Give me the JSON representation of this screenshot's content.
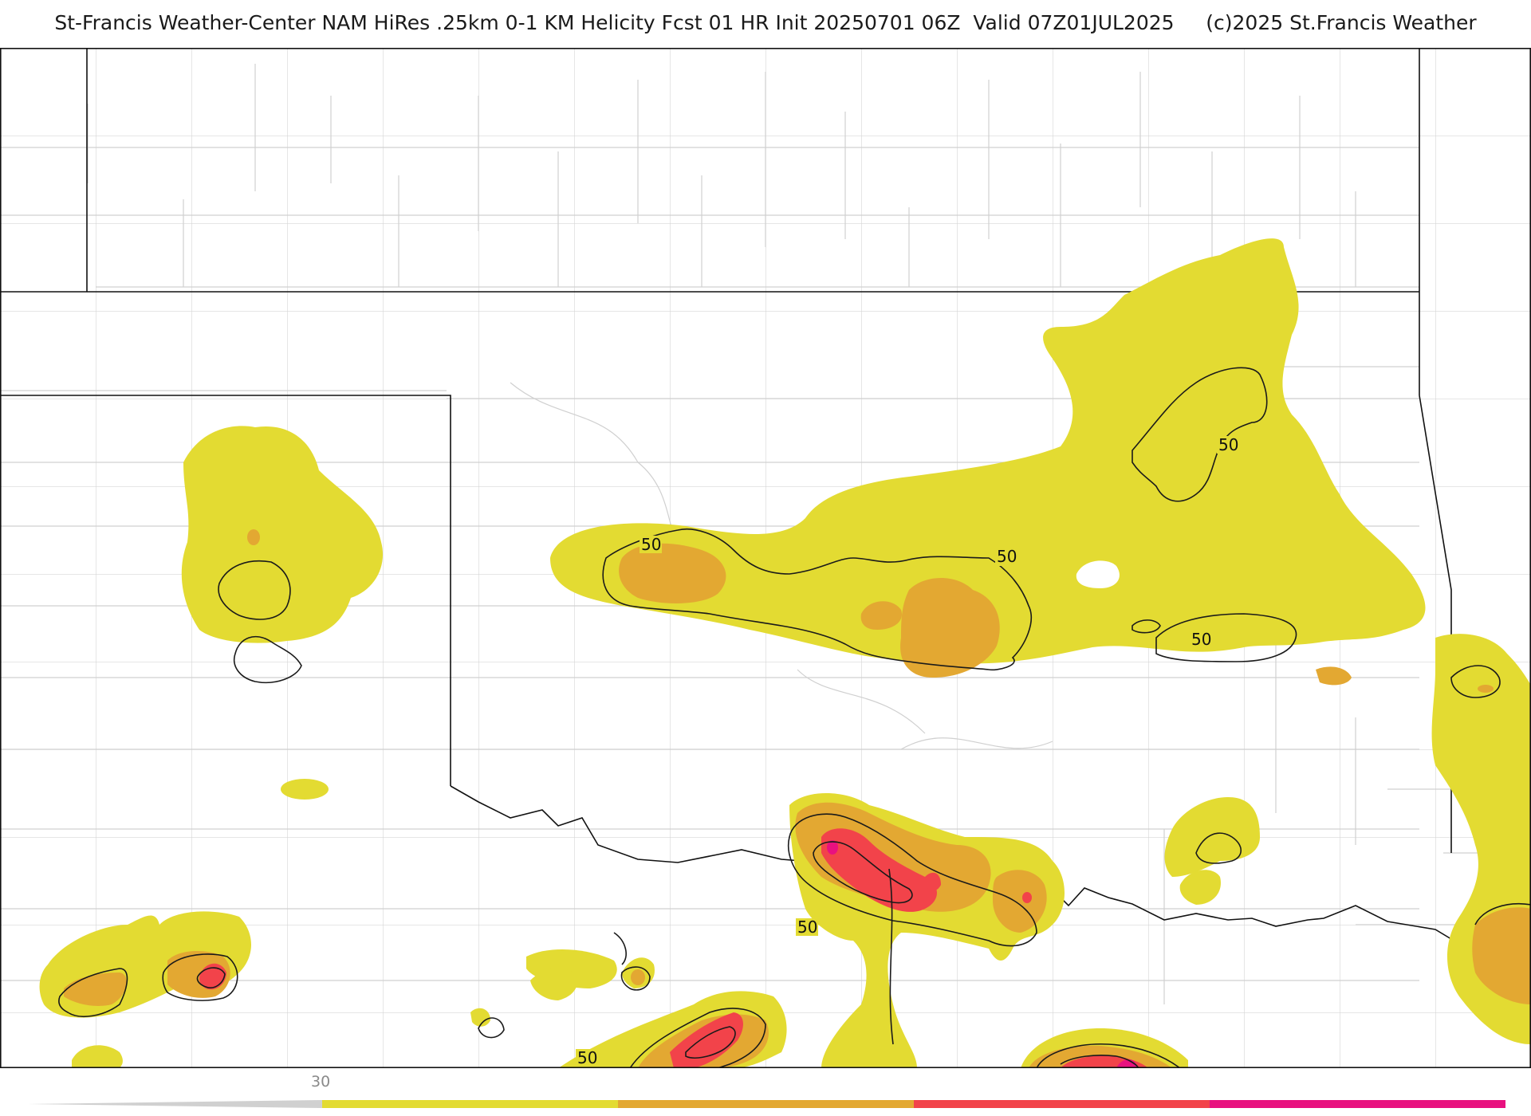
{
  "title": "St-Francis Weather-Center NAM HiRes .25km 0-1 KM Helicity Fcst 01 HR Init 20250701 06Z  Valid 07Z01JUL2025     (c)2025 St.Francis Weather",
  "colors": {
    "level_30": "#e3db32",
    "level_50": "#e3a832",
    "level_70": "#f2434a",
    "level_90": "#e8117f",
    "contour": "#1a1a1a",
    "county_line": "#c8c8c8",
    "state_line": "#111111",
    "colorbar_min": "#d0d0d0"
  },
  "contour_labels": [
    "50",
    "50",
    "50",
    "50",
    "50",
    "50"
  ],
  "colorbar": {
    "tick_labels": [
      "30"
    ],
    "segments": [
      "level_30",
      "level_50",
      "level_70",
      "level_90"
    ]
  }
}
